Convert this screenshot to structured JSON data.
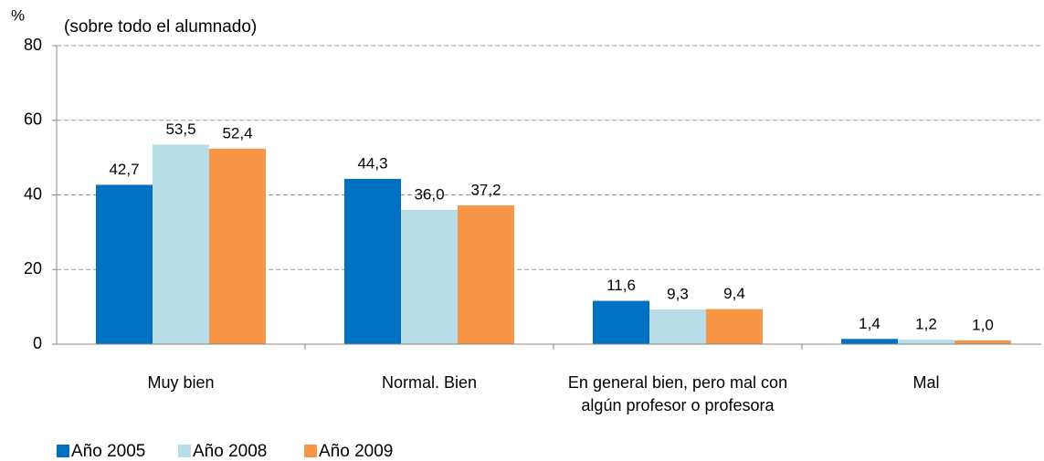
{
  "chart_data": {
    "type": "bar",
    "y_axis_label": "%",
    "subtitle": "(sobre todo el alumnado)",
    "categories": [
      "Muy bien",
      "Normal. Bien",
      "En general bien, pero mal con algún profesor o profesora",
      "Mal"
    ],
    "series": [
      {
        "name": "Año 2005",
        "color": "#0070c0",
        "values": [
          42.7,
          44.3,
          11.6,
          1.4
        ],
        "value_labels": [
          "42,7",
          "44,3",
          "11,6",
          "1,4"
        ]
      },
      {
        "name": "Año 2008",
        "color": "#b7dde8",
        "values": [
          53.5,
          36.0,
          9.3,
          1.2
        ],
        "value_labels": [
          "53,5",
          "36,0",
          "9,3",
          "1,2"
        ]
      },
      {
        "name": "Año 2009",
        "color": "#f79646",
        "values": [
          52.4,
          37.2,
          9.4,
          1.0
        ],
        "value_labels": [
          "52,4",
          "37,2",
          "9,4",
          "1,0"
        ]
      }
    ],
    "ylim": [
      0,
      80
    ],
    "yticks": [
      0,
      20,
      40,
      60,
      80
    ],
    "grid": true,
    "legend": "bottom-left"
  }
}
